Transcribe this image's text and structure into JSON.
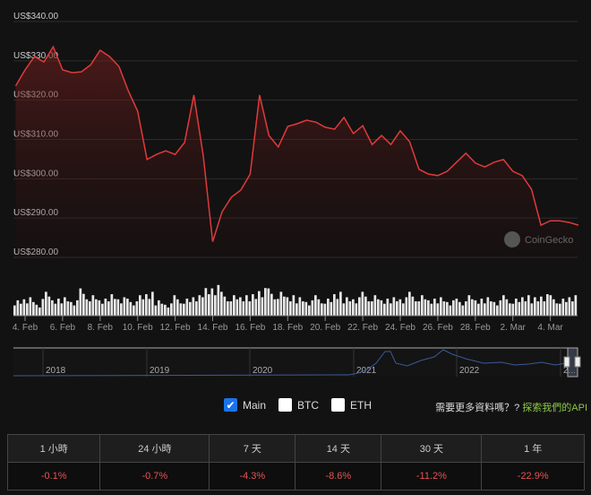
{
  "chart_data": {
    "type": "area",
    "ylim": [
      280,
      340
    ],
    "y_ticks": [
      "US$340.00",
      "US$330.00",
      "US$320.00",
      "US$310.00",
      "US$300.00",
      "US$290.00",
      "US$280.00"
    ],
    "y_tick_values": [
      340,
      330,
      320,
      310,
      300,
      290,
      280
    ],
    "x_ticks": [
      "4. Feb",
      "6. Feb",
      "8. Feb",
      "10. Feb",
      "12. Feb",
      "14. Feb",
      "16. Feb",
      "18. Feb",
      "20. Feb",
      "22. Feb",
      "24. Feb",
      "26. Feb",
      "28. Feb",
      "2. Mar",
      "4. Mar"
    ],
    "x_tick_dates": [
      "2022-02-04",
      "2022-02-06",
      "2022-02-08",
      "2022-02-10",
      "2022-02-12",
      "2022-02-14",
      "2022-02-16",
      "2022-02-18",
      "2022-02-20",
      "2022-02-22",
      "2022-02-24",
      "2022-02-26",
      "2022-02-28",
      "2022-03-02",
      "2022-03-04"
    ],
    "grid": true,
    "line_color": "#e03a3a",
    "series": [
      {
        "x": [
          "2022-02-03 12:00",
          "2022-02-04 00:00",
          "2022-02-04 12:00",
          "2022-02-05 00:00",
          "2022-02-05 12:00",
          "2022-02-06 00:00",
          "2022-02-06 12:00",
          "2022-02-07 00:00",
          "2022-02-07 12:00",
          "2022-02-08 00:00",
          "2022-02-08 12:00",
          "2022-02-09 00:00",
          "2022-02-09 12:00",
          "2022-02-10 00:00",
          "2022-02-10 12:00",
          "2022-02-11 00:00",
          "2022-02-11 12:00",
          "2022-02-12 00:00",
          "2022-02-12 12:00",
          "2022-02-13 00:00",
          "2022-02-13 12:00",
          "2022-02-14 00:00",
          "2022-02-14 12:00",
          "2022-02-15 00:00",
          "2022-02-15 12:00",
          "2022-02-16 00:00",
          "2022-02-16 12:00",
          "2022-02-17 00:00",
          "2022-02-17 12:00",
          "2022-02-18 00:00",
          "2022-02-18 12:00",
          "2022-02-19 00:00",
          "2022-02-19 12:00",
          "2022-02-20 00:00",
          "2022-02-20 12:00",
          "2022-02-21 00:00",
          "2022-02-21 12:00",
          "2022-02-22 00:00",
          "2022-02-22 12:00",
          "2022-02-23 00:00",
          "2022-02-23 12:00",
          "2022-02-24 00:00",
          "2022-02-24 12:00",
          "2022-02-25 00:00",
          "2022-02-25 12:00",
          "2022-02-26 00:00",
          "2022-02-26 12:00",
          "2022-02-27 00:00",
          "2022-02-27 12:00",
          "2022-02-28 00:00",
          "2022-02-28 12:00",
          "2022-03-01 00:00",
          "2022-03-01 12:00",
          "2022-03-02 00:00",
          "2022-03-02 12:00",
          "2022-03-03 00:00",
          "2022-03-03 12:00",
          "2022-03-04 00:00",
          "2022-03-04 12:00",
          "2022-03-05 00:00",
          "2022-03-05 12:00"
        ],
        "y": [
          323.6,
          327.7,
          331.1,
          329.7,
          333.6,
          327.7,
          327.0,
          327.2,
          329.0,
          332.7,
          331.1,
          328.6,
          322.4,
          317.2,
          304.9,
          306.2,
          307.1,
          306.2,
          309.2,
          321.3,
          305.8,
          284.0,
          291.6,
          295.3,
          297.1,
          301.2,
          321.3,
          311.0,
          308.1,
          313.3,
          314.0,
          314.9,
          314.4,
          313.1,
          312.6,
          315.6,
          311.5,
          313.5,
          308.7,
          311.0,
          308.7,
          312.2,
          309.4,
          302.4,
          301.2,
          300.8,
          301.9,
          304.2,
          306.5,
          304.0,
          303.0,
          304.2,
          304.9,
          301.9,
          300.8,
          297.3,
          288.2,
          289.3,
          289.3,
          288.9,
          288.2
        ]
      }
    ],
    "volume_relative": [
      0.5,
      0.6,
      0.4,
      0.7,
      0.5,
      0.6,
      0.5,
      0.8,
      0.6,
      0.5,
      0.7,
      0.6,
      0.5,
      0.6,
      0.7,
      0.5,
      0.4,
      0.6,
      0.5,
      0.6,
      0.9,
      1.0,
      0.7,
      0.6,
      0.6,
      0.7,
      0.9,
      0.8,
      0.7,
      0.6,
      0.6,
      0.5,
      0.6,
      0.5,
      0.7,
      0.6,
      0.6,
      0.7,
      0.6,
      0.5,
      0.6,
      0.6,
      0.7,
      0.6,
      0.5,
      0.6,
      0.5,
      0.5,
      0.6,
      0.5,
      0.6,
      0.5,
      0.6,
      0.5,
      0.6,
      0.6,
      0.7,
      0.6,
      0.5,
      0.6
    ],
    "watermark": "CoinGecko"
  },
  "navigator": {
    "years": [
      "2018",
      "2019",
      "2020",
      "2021",
      "2022",
      "2..."
    ]
  },
  "legend": {
    "main": "Main",
    "btc": "BTC",
    "eth": "ETH"
  },
  "api_prompt": "需要更多資料嗎？?",
  "api_link": "探索我們的API",
  "changes": {
    "headers": [
      "1 小時",
      "24 小時",
      "7 天",
      "14 天",
      "30 天",
      "1 年"
    ],
    "values": [
      "-0.1%",
      "-0.7%",
      "-4.3%",
      "-8.6%",
      "-11.2%",
      "-22.9%"
    ]
  }
}
